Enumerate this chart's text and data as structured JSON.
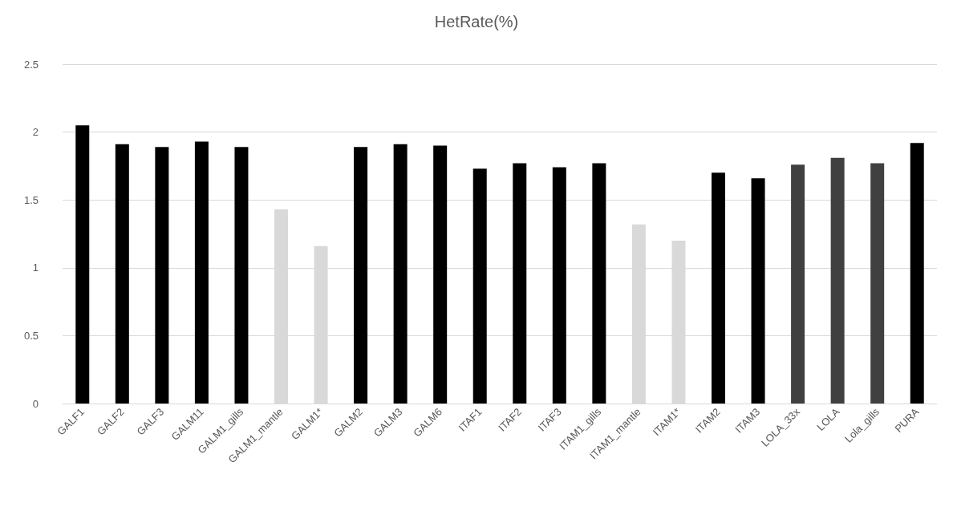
{
  "chart_data": {
    "type": "bar",
    "title": "HetRate(%)",
    "categories": [
      "GALF1",
      "GALF2",
      "GALF3",
      "GALM11",
      "GALM1_gills",
      "GALM1_mantle",
      "GALM1*",
      "GALM2",
      "GALM3",
      "GALM6",
      "ITAF1",
      "ITAF2",
      "ITAF3",
      "ITAM1_gills",
      "ITAM1_mantle",
      "ITAM1*",
      "ITAM2",
      "ITAM3",
      "LOLA_33x",
      "LOLA",
      "Lola_gills",
      "PURA"
    ],
    "values": [
      2.05,
      1.91,
      1.89,
      1.93,
      1.89,
      1.43,
      1.16,
      1.89,
      1.91,
      1.9,
      1.73,
      1.77,
      1.74,
      1.77,
      1.32,
      1.2,
      1.7,
      1.66,
      1.76,
      1.81,
      1.77,
      1.92
    ],
    "colors": [
      "#000000",
      "#000000",
      "#000000",
      "#000000",
      "#000000",
      "#d9d9d9",
      "#d9d9d9",
      "#000000",
      "#000000",
      "#000000",
      "#000000",
      "#000000",
      "#000000",
      "#000000",
      "#d9d9d9",
      "#d9d9d9",
      "#000000",
      "#000000",
      "#404040",
      "#404040",
      "#404040",
      "#000000"
    ],
    "ylim": [
      0,
      2.5
    ],
    "yticks": [
      0,
      0.5,
      1,
      1.5,
      2,
      2.5
    ],
    "grid": "y"
  }
}
